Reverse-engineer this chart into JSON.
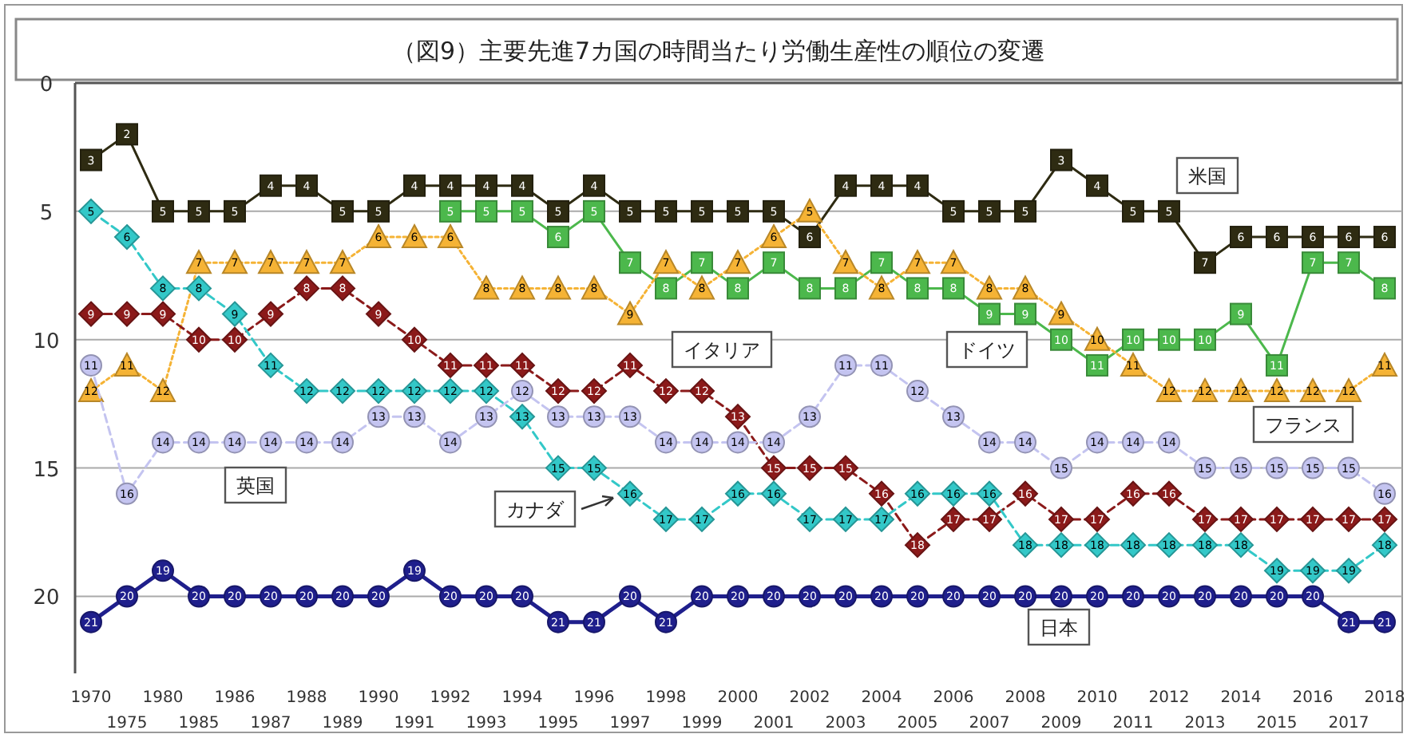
{
  "chart_data": {
    "type": "line",
    "title": "（図9）主要先進7カ国の時間当たり労働生産性の順位の変遷",
    "categories": [
      "1970",
      "1975",
      "1980",
      "1985",
      "1986",
      "1987",
      "1988",
      "1989",
      "1990",
      "1991",
      "1992",
      "1993",
      "1994",
      "1995",
      "1996",
      "1997",
      "1998",
      "1999",
      "2000",
      "2001",
      "2002",
      "2003",
      "2004",
      "2005",
      "2006",
      "2007",
      "2008",
      "2009",
      "2010",
      "2011",
      "2012",
      "2013",
      "2014",
      "2015",
      "2016",
      "2017",
      "2018"
    ],
    "series": [
      {
        "name": "米国",
        "color": "#2e2b12",
        "marker": "square",
        "line_style": "solid",
        "values": [
          3,
          2,
          5,
          5,
          5,
          4,
          4,
          5,
          5,
          4,
          4,
          4,
          4,
          5,
          4,
          5,
          5,
          5,
          5,
          5,
          6,
          4,
          4,
          4,
          5,
          5,
          5,
          3,
          4,
          5,
          5,
          7,
          6,
          6,
          6,
          6,
          6
        ]
      },
      {
        "name": "ドイツ",
        "color": "#4cb84c",
        "marker": "square",
        "line_style": "solid",
        "values": [
          null,
          null,
          null,
          null,
          null,
          null,
          null,
          null,
          null,
          null,
          5,
          5,
          5,
          6,
          5,
          7,
          8,
          7,
          8,
          7,
          8,
          8,
          7,
          8,
          8,
          9,
          9,
          10,
          11,
          10,
          10,
          10,
          9,
          11,
          7,
          7,
          8
        ]
      },
      {
        "name": "フランス",
        "color": "#f5b335",
        "marker": "triangle",
        "line_style": "dotted",
        "values": [
          12,
          11,
          12,
          7,
          7,
          7,
          7,
          7,
          6,
          6,
          6,
          8,
          8,
          8,
          8,
          9,
          7,
          8,
          7,
          6,
          5,
          7,
          8,
          7,
          7,
          8,
          8,
          9,
          10,
          11,
          12,
          12,
          12,
          12,
          12,
          12,
          11
        ]
      },
      {
        "name": "イタリア",
        "color": "#8b1a1a",
        "marker": "diamond",
        "line_style": "dashed",
        "values": [
          9,
          9,
          9,
          10,
          10,
          9,
          8,
          8,
          9,
          10,
          11,
          11,
          11,
          12,
          12,
          11,
          12,
          12,
          13,
          15,
          15,
          15,
          16,
          18,
          17,
          17,
          16,
          17,
          17,
          16,
          16,
          17,
          17,
          17,
          17,
          17,
          17
        ]
      },
      {
        "name": "英国",
        "color": "#c4c4f0",
        "marker": "circle",
        "line_style": "dashed",
        "values": [
          11,
          16,
          14,
          14,
          14,
          14,
          14,
          14,
          13,
          13,
          14,
          13,
          12,
          13,
          13,
          13,
          14,
          14,
          14,
          14,
          13,
          11,
          11,
          12,
          13,
          14,
          14,
          15,
          14,
          14,
          14,
          15,
          15,
          15,
          15,
          15,
          16
        ]
      },
      {
        "name": "カナダ",
        "color": "#33c8c8",
        "marker": "diamond",
        "line_style": "dashed",
        "values": [
          5,
          6,
          8,
          8,
          9,
          11,
          12,
          12,
          12,
          12,
          12,
          12,
          13,
          15,
          15,
          16,
          17,
          17,
          16,
          16,
          17,
          17,
          17,
          16,
          16,
          16,
          18,
          18,
          18,
          18,
          18,
          18,
          18,
          19,
          19,
          19,
          18
        ]
      },
      {
        "name": "日本",
        "color": "#1f1f8c",
        "marker": "circle",
        "line_style": "solid",
        "values": [
          21,
          20,
          19,
          20,
          20,
          20,
          20,
          20,
          20,
          19,
          20,
          20,
          20,
          21,
          21,
          20,
          21,
          20,
          20,
          20,
          20,
          20,
          20,
          20,
          20,
          20,
          20,
          20,
          20,
          20,
          20,
          20,
          20,
          20,
          20,
          21,
          21
        ]
      }
    ],
    "ylim": [
      23,
      0
    ],
    "yticks": [
      0,
      5,
      10,
      15,
      20
    ],
    "grid": "y",
    "legend": false,
    "data_labels": true
  }
}
